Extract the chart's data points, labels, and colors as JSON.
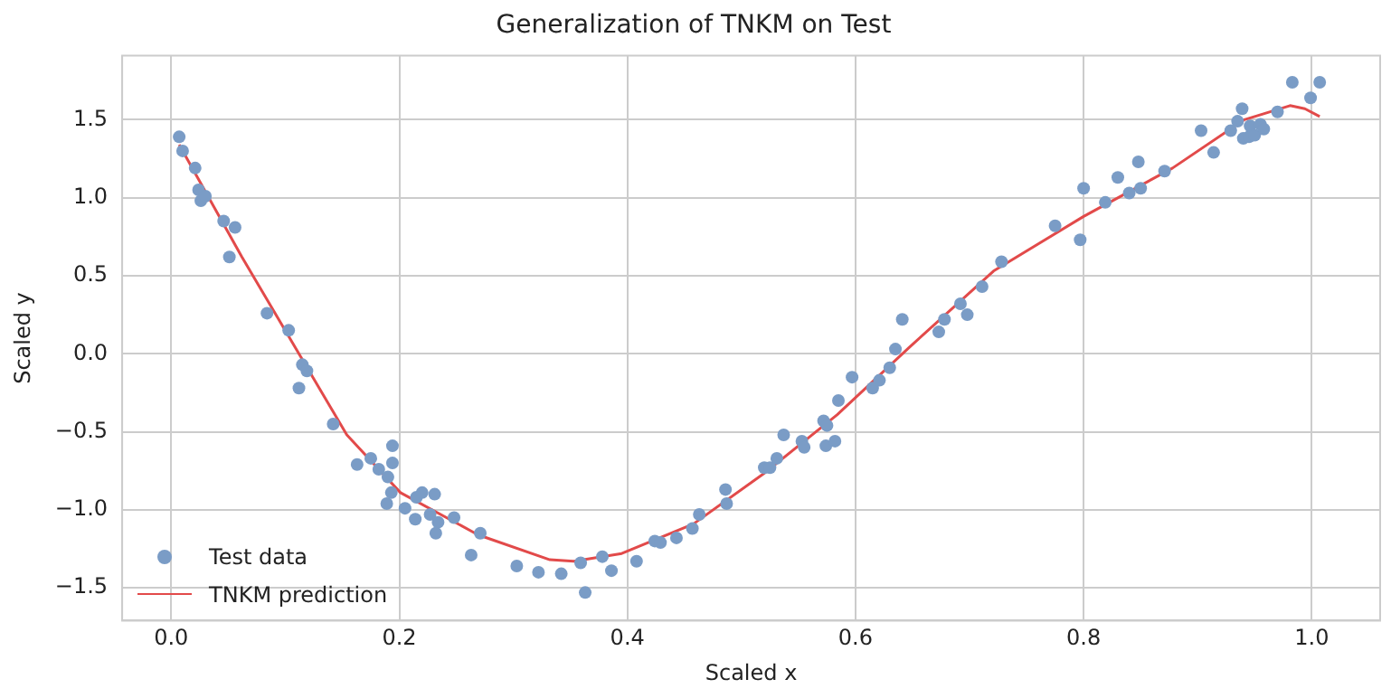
{
  "chart_data": {
    "type": "scatter",
    "title": "Generalization of TNKM on Test",
    "xlabel": "Scaled x",
    "ylabel": "Scaled y",
    "xlim": [
      -0.043,
      1.06
    ],
    "ylim": [
      -1.71,
      1.91
    ],
    "xticks": [
      {
        "value": 0,
        "label": "0.0"
      },
      {
        "value": 0.2,
        "label": "0.2"
      },
      {
        "value": 0.4,
        "label": "0.4"
      },
      {
        "value": 0.6,
        "label": "0.6"
      },
      {
        "value": 0.8,
        "label": "0.8"
      },
      {
        "value": 1,
        "label": "1.0"
      }
    ],
    "yticks": [
      {
        "value": -1.5,
        "label": "−1.5"
      },
      {
        "value": -1,
        "label": "−1.0"
      },
      {
        "value": -0.5,
        "label": "−0.5"
      },
      {
        "value": 0,
        "label": "0.0"
      },
      {
        "value": 0.5,
        "label": "0.5"
      },
      {
        "value": 1,
        "label": "1.0"
      },
      {
        "value": 1.5,
        "label": "1.5"
      }
    ],
    "grid": true,
    "legend": "bottom left",
    "marker": "circle",
    "series": [
      {
        "name": "Test data",
        "color": "#7a9cc6",
        "x": [
          0.007,
          0.01,
          0.021,
          0.024,
          0.026,
          0.03,
          0.046,
          0.056,
          0.051,
          0.084,
          0.103,
          0.115,
          0.119,
          0.112,
          0.142,
          0.163,
          0.175,
          0.182,
          0.19,
          0.194,
          0.194,
          0.193,
          0.189,
          0.205,
          0.215,
          0.22,
          0.231,
          0.214,
          0.227,
          0.234,
          0.232,
          0.248,
          0.271,
          0.263,
          0.303,
          0.322,
          0.342,
          0.359,
          0.363,
          0.378,
          0.386,
          0.408,
          0.424,
          0.429,
          0.443,
          0.457,
          0.463,
          0.486,
          0.487,
          0.52,
          0.525,
          0.531,
          0.537,
          0.553,
          0.555,
          0.572,
          0.575,
          0.574,
          0.582,
          0.585,
          0.597,
          0.615,
          0.621,
          0.63,
          0.635,
          0.641,
          0.673,
          0.678,
          0.692,
          0.698,
          0.711,
          0.728,
          0.775,
          0.797,
          0.8,
          0.819,
          0.83,
          0.84,
          0.848,
          0.85,
          0.871,
          0.903,
          0.914,
          0.929,
          0.935,
          0.939,
          0.94,
          0.945,
          0.946,
          0.95,
          0.955,
          0.958,
          0.97,
          0.983,
          0.999,
          1.007
        ],
        "values": [
          1.39,
          1.3,
          1.19,
          1.05,
          0.98,
          1.01,
          0.85,
          0.81,
          0.62,
          0.26,
          0.15,
          -0.07,
          -0.11,
          -0.22,
          -0.45,
          -0.71,
          -0.67,
          -0.74,
          -0.79,
          -0.59,
          -0.7,
          -0.89,
          -0.96,
          -0.99,
          -0.92,
          -0.89,
          -0.9,
          -1.06,
          -1.03,
          -1.08,
          -1.15,
          -1.05,
          -1.15,
          -1.29,
          -1.36,
          -1.4,
          -1.41,
          -1.34,
          -1.53,
          -1.3,
          -1.39,
          -1.33,
          -1.2,
          -1.21,
          -1.18,
          -1.12,
          -1.03,
          -0.87,
          -0.96,
          -0.73,
          -0.73,
          -0.67,
          -0.52,
          -0.56,
          -0.6,
          -0.43,
          -0.46,
          -0.59,
          -0.56,
          -0.3,
          -0.15,
          -0.22,
          -0.17,
          -0.09,
          0.03,
          0.22,
          0.14,
          0.22,
          0.32,
          0.25,
          0.43,
          0.59,
          0.82,
          0.73,
          1.06,
          0.97,
          1.13,
          1.03,
          1.23,
          1.06,
          1.17,
          1.43,
          1.29,
          1.43,
          1.49,
          1.57,
          1.38,
          1.39,
          1.46,
          1.4,
          1.47,
          1.44,
          1.55,
          1.74,
          1.64,
          1.74
        ]
      },
      {
        "name": "TNKM prediction",
        "type": "line",
        "color": "#e24a4a",
        "marker": "none",
        "line_style": "solid",
        "x": [
          0.007,
          0.062,
          0.112,
          0.154,
          0.201,
          0.269,
          0.332,
          0.353,
          0.395,
          0.458,
          0.521,
          0.584,
          0.647,
          0.721,
          0.8,
          0.878,
          0.941,
          0.981,
          0.994,
          1.007
        ],
        "values": [
          1.34,
          0.62,
          0.0,
          -0.52,
          -0.89,
          -1.16,
          -1.32,
          -1.33,
          -1.28,
          -1.09,
          -0.76,
          -0.39,
          0.04,
          0.53,
          0.88,
          1.19,
          1.5,
          1.59,
          1.57,
          1.52
        ]
      }
    ]
  }
}
